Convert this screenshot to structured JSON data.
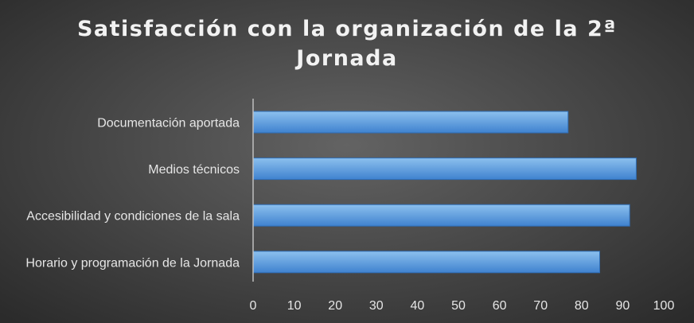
{
  "chart_data": {
    "type": "bar",
    "orientation": "horizontal",
    "title": "Satisfacción con la organización de la 2ª Jornada",
    "title_lines": [
      "Satisfacción con la organización de la 2ª",
      "Jornada"
    ],
    "categories": [
      "Documentación aportada",
      "Medios técnicos",
      "Accesibilidad y condiciones de la sala",
      "Horario y programación de la Jornada"
    ],
    "values": [
      76.7,
      93.3,
      91.7,
      84.4
    ],
    "xlim": [
      0,
      100
    ],
    "xticks": [
      0,
      10,
      20,
      30,
      40,
      50,
      60,
      70,
      80,
      90,
      100
    ],
    "grid": false,
    "legend": "none",
    "colors": {
      "bar_top": "#8cc0ee",
      "bar_bottom": "#3f82cf",
      "bar_stroke": "#2f6db5",
      "axis": "#bfbfbf",
      "text": "#e6e6e6",
      "background": "#4a4a4a"
    }
  }
}
